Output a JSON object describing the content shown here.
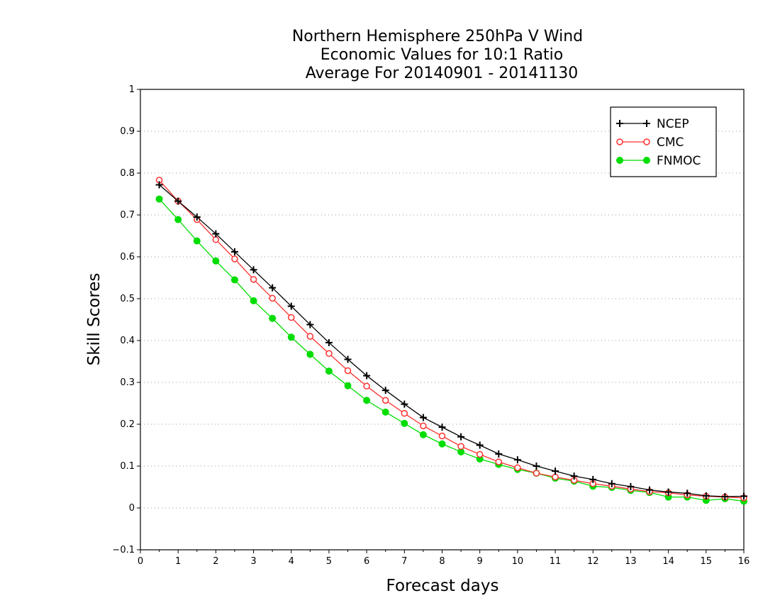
{
  "chart_data": {
    "type": "line",
    "title": [
      "Northern Hemisphere 250hPa V Wind",
      "Economic Values for 10:1 Ratio",
      "Average For 20140901 - 20141130"
    ],
    "xlabel": "Forecast days",
    "ylabel": "Skill Scores",
    "xlim": [
      0,
      16
    ],
    "ylim": [
      -0.1,
      1
    ],
    "xticks": [
      "0",
      "1",
      "2",
      "3",
      "4",
      "5",
      "6",
      "7",
      "8",
      "9",
      "10",
      "11",
      "12",
      "13",
      "14",
      "15",
      "16"
    ],
    "yticks": [
      "−0.1",
      "0",
      "0.1",
      "0.2",
      "0.3",
      "0.4",
      "0.5",
      "0.6",
      "0.7",
      "0.8",
      "0.9",
      "1"
    ],
    "grid": "horizontal dotted",
    "legend_position": "top-right",
    "x": [
      0.5,
      1,
      1.5,
      2,
      2.5,
      3,
      3.5,
      4,
      4.5,
      5,
      5.5,
      6,
      6.5,
      7,
      7.5,
      8,
      8.5,
      9,
      9.5,
      10,
      10.5,
      11,
      11.5,
      12,
      12.5,
      13,
      13.5,
      14,
      14.5,
      15,
      15.5,
      16
    ],
    "series": [
      {
        "name": "NCEP",
        "color": "#000000",
        "marker": "plus",
        "values": [
          0.772,
          0.733,
          0.695,
          0.655,
          0.612,
          0.569,
          0.526,
          0.482,
          0.438,
          0.395,
          0.355,
          0.316,
          0.281,
          0.248,
          0.216,
          0.193,
          0.17,
          0.15,
          0.129,
          0.115,
          0.1,
          0.088,
          0.076,
          0.068,
          0.058,
          0.051,
          0.043,
          0.038,
          0.035,
          0.029,
          0.027,
          0.028
        ]
      },
      {
        "name": "CMC",
        "color": "#ff3030",
        "marker": "open-circle",
        "values": [
          0.783,
          0.733,
          0.689,
          0.641,
          0.595,
          0.546,
          0.501,
          0.455,
          0.41,
          0.369,
          0.328,
          0.291,
          0.257,
          0.226,
          0.196,
          0.172,
          0.147,
          0.128,
          0.11,
          0.096,
          0.083,
          0.074,
          0.066,
          0.058,
          0.052,
          0.045,
          0.039,
          0.036,
          0.031,
          0.028,
          0.026,
          0.024
        ]
      },
      {
        "name": "FNMOC",
        "color": "#00dd00",
        "marker": "filled-circle",
        "values": [
          0.738,
          0.689,
          0.638,
          0.59,
          0.545,
          0.495,
          0.453,
          0.408,
          0.367,
          0.327,
          0.292,
          0.257,
          0.229,
          0.202,
          0.175,
          0.153,
          0.134,
          0.117,
          0.104,
          0.092,
          0.083,
          0.071,
          0.064,
          0.052,
          0.049,
          0.042,
          0.037,
          0.026,
          0.026,
          0.018,
          0.022,
          0.016
        ]
      }
    ]
  }
}
